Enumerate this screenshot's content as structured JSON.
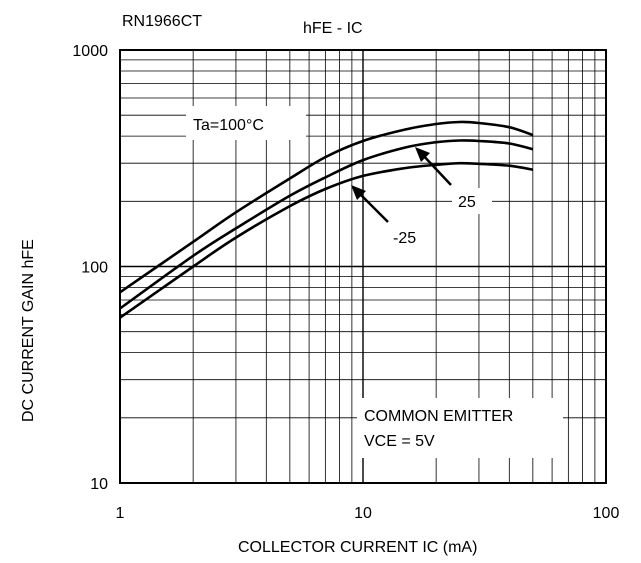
{
  "chart_data": {
    "type": "line",
    "part_number": "RN1966CT",
    "title": "hFE - IC",
    "xlabel": "COLLECTOR CURRENT  IC   (mA)",
    "ylabel": "DC CURRENT GAIN  hFE",
    "x_scale": "log",
    "y_scale": "log",
    "xlim": [
      1,
      100
    ],
    "ylim": [
      10,
      1000
    ],
    "x_ticks": [
      1,
      10,
      100
    ],
    "x_tick_labels": [
      "1",
      "10",
      "100"
    ],
    "y_ticks": [
      10,
      100,
      1000
    ],
    "y_tick_labels": [
      "10",
      "100",
      "1000"
    ],
    "grid": true,
    "x": [
      1,
      2,
      3,
      5,
      7,
      10,
      15,
      20,
      25,
      30,
      40,
      50
    ],
    "series": [
      {
        "name": "Ta=100°C",
        "values": [
          76,
          130,
          178,
          255,
          320,
          380,
          430,
          455,
          465,
          460,
          440,
          405
        ]
      },
      {
        "name": "25",
        "values": [
          64,
          112,
          150,
          212,
          258,
          310,
          355,
          375,
          382,
          380,
          370,
          348
        ]
      },
      {
        "name": "-25",
        "values": [
          58,
          100,
          136,
          190,
          228,
          262,
          285,
          295,
          300,
          298,
          292,
          280
        ]
      }
    ],
    "annotations": {
      "label_100": "Ta=100°C",
      "label_25": "25",
      "label_m25": "-25",
      "condition_line1": "COMMON EMITTER",
      "condition_line2": "VCE = 5V"
    }
  }
}
